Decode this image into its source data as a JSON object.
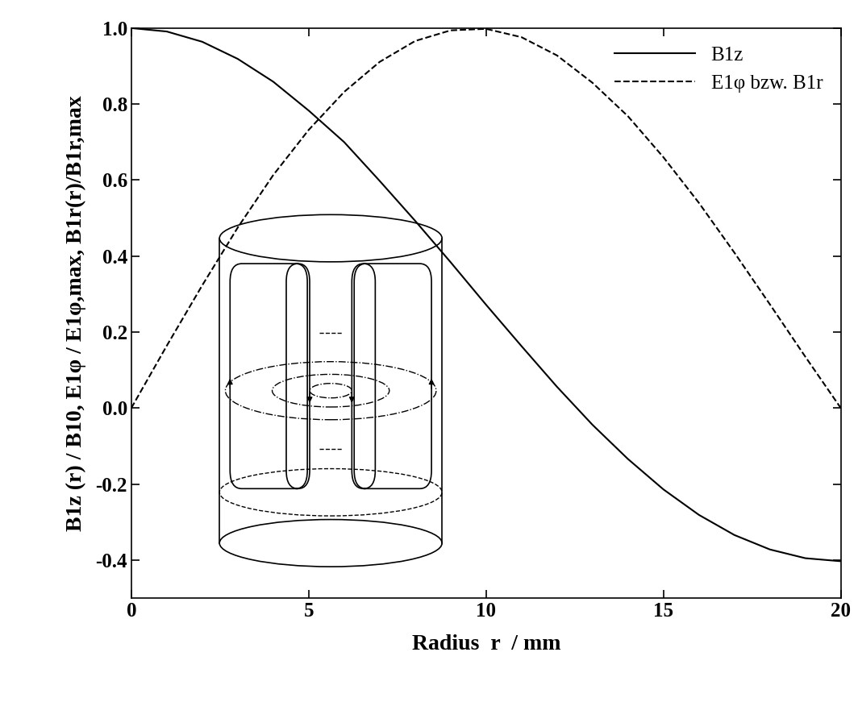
{
  "chart_data": {
    "type": "line",
    "x_label": "Radius  r  / mm",
    "y_label": "B1z (r) / B10, E1φ / E1φ,max, B1r(r)/B1r,max",
    "x": [
      0,
      1,
      2,
      3,
      4,
      5,
      6,
      7,
      8,
      9,
      10,
      11,
      12,
      13,
      14,
      15,
      16,
      17,
      18,
      19,
      20
    ],
    "series": [
      {
        "name": "B1z",
        "color": "#000000",
        "line_style": "solid",
        "values": [
          1.0,
          0.991,
          0.964,
          0.919,
          0.859,
          0.783,
          0.7,
          0.598,
          0.493,
          0.384,
          0.272,
          0.163,
          0.056,
          -0.044,
          -0.134,
          -0.214,
          -0.281,
          -0.334,
          -0.372,
          -0.395,
          -0.403
        ]
      },
      {
        "name": "E1φ bzw. B1r",
        "color": "#000000",
        "line_style": "dashed",
        "values": [
          0.0,
          0.164,
          0.323,
          0.475,
          0.613,
          0.732,
          0.832,
          0.911,
          0.966,
          0.994,
          0.998,
          0.976,
          0.928,
          0.856,
          0.768,
          0.66,
          0.54,
          0.409,
          0.273,
          0.135,
          0.0
        ]
      }
    ],
    "xlim": [
      0,
      20
    ],
    "xticks": [
      0,
      5,
      10,
      15,
      20
    ],
    "ylim": [
      -0.5,
      1.0
    ],
    "yticks": [
      -0.4,
      -0.2,
      {
        "value": 0.0,
        "label": "0.0"
      },
      0.2,
      0.4,
      0.6,
      0.8,
      {
        "value": 1.0,
        "label": "1.0"
      }
    ],
    "legend": "upper right",
    "grid": false
  }
}
